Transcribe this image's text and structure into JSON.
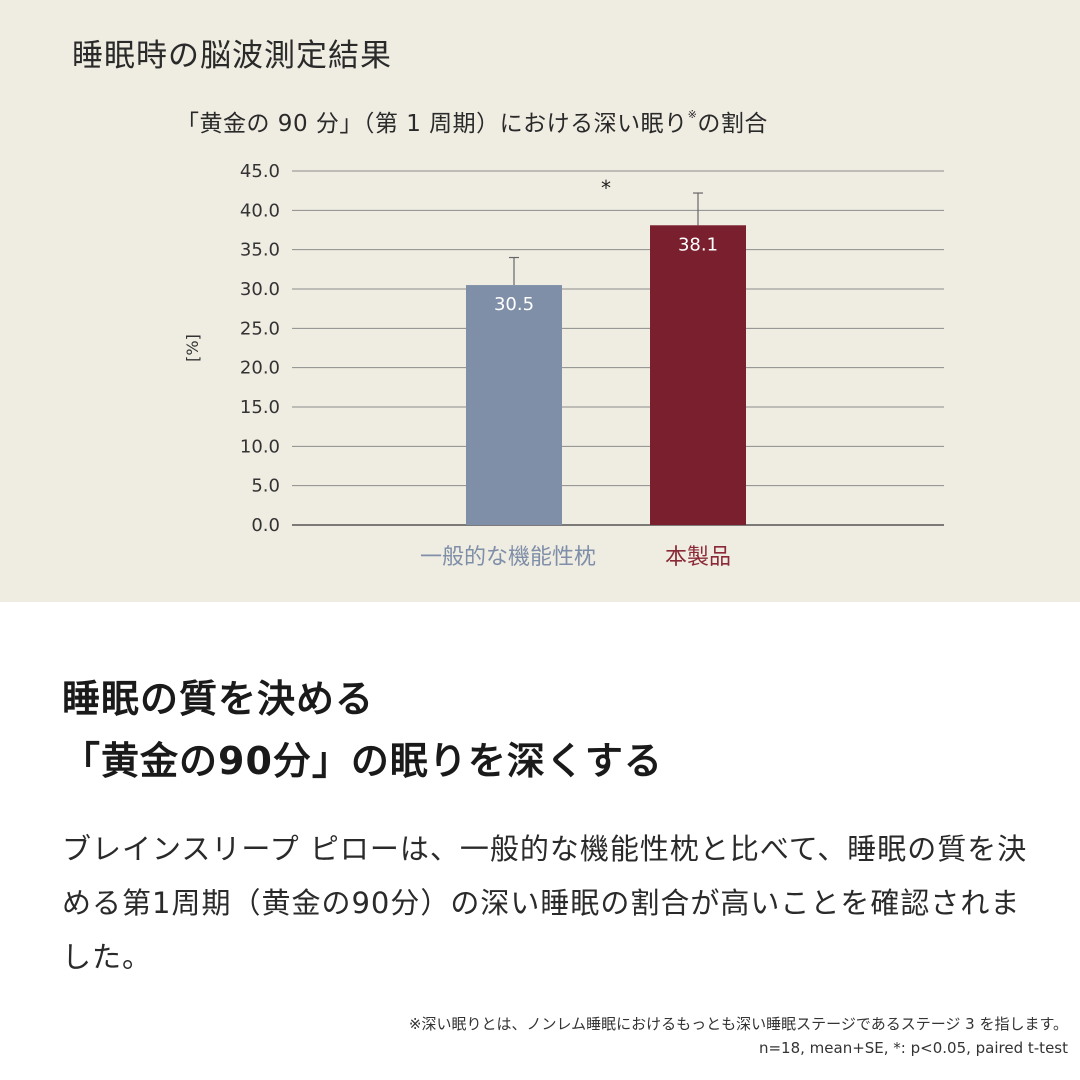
{
  "section_title": "睡眠時の脳波測定結果",
  "chart_title": {
    "main": "「黄金の 90 分」（第 1 周期）における深い眠り",
    "mark": "※",
    "tail": "の割合"
  },
  "chart_data": {
    "type": "bar",
    "categories": [
      "一般的な機能性枕",
      "本製品"
    ],
    "values": [
      30.5,
      38.1
    ],
    "value_labels": [
      "30.5",
      "38.1"
    ],
    "error_upper": [
      34.0,
      42.2
    ],
    "ylabel": "[%]",
    "ylim": [
      0,
      45
    ],
    "y_ticks": [
      "0.0",
      "5.0",
      "10.0",
      "15.0",
      "20.0",
      "25.0",
      "30.0",
      "35.0",
      "40.0",
      "45.0"
    ],
    "significance_marker": "*",
    "grid": true,
    "colors": [
      "#7f8fa8",
      "#7a1f2e"
    ],
    "category_label_colors": [
      "#7f8fa8",
      "#8a2a36"
    ]
  },
  "headline": {
    "line1": "睡眠の質を決める",
    "line2": "「黄金の90分」の眠りを深くする"
  },
  "body_text": "ブレインスリープ ピローは、一般的な機能性枕と比べて、睡眠の質を決める第1周期（黄金の90分）の深い睡眠の割合が高いことを確認されました。",
  "footnotes": {
    "definition": "※深い眠りとは、ノンレム睡眠におけるもっとも深い睡眠ステージであるステージ 3 を指します。",
    "stats": "n=18, mean+SE, *: p<0.05, paired t-test"
  }
}
